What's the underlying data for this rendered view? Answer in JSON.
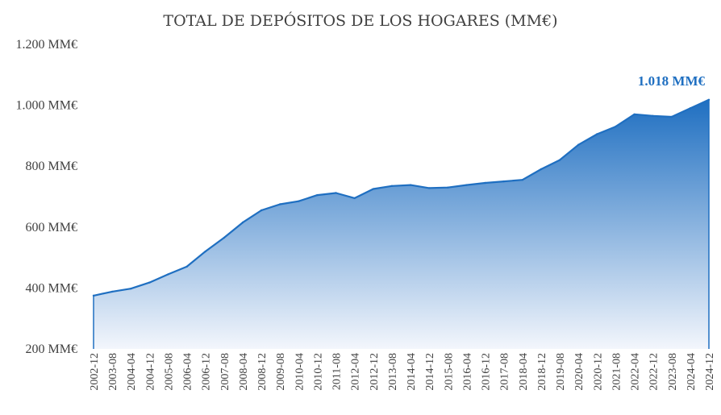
{
  "chart_data": {
    "type": "area",
    "title": "TOTAL DE DEPÓSITOS DE LOS HOGARES (MM€)",
    "ylim": [
      200,
      1200
    ],
    "y_ticks": [
      200,
      400,
      600,
      800,
      1000,
      1200
    ],
    "y_tick_labels": [
      "200 MM€",
      "400 MM€",
      "600 MM€",
      "800 MM€",
      "1.000 MM€",
      "1.200 MM€"
    ],
    "x_tick_labels": [
      "2002-12",
      "2003-08",
      "2004-04",
      "2004-12",
      "2005-08",
      "2006-04",
      "2006-12",
      "2007-08",
      "2008-04",
      "2008-12",
      "2009-08",
      "2010-04",
      "2010-12",
      "2011-08",
      "2012-04",
      "2012-12",
      "2013-08",
      "2014-04",
      "2014-12",
      "2015-08",
      "2016-04",
      "2016-12",
      "2017-08",
      "2018-04",
      "2018-12",
      "2019-08",
      "2020-04",
      "2020-12",
      "2021-08",
      "2022-04",
      "2022-12",
      "2023-08",
      "2024-04",
      "2024-12"
    ],
    "grid": false,
    "colors": {
      "line": "#1F6FC1",
      "fill_top": "#1F6FC1",
      "fill_bottom": "#F3F6FC",
      "end_label": "#1F6FC1",
      "text": "#404040"
    },
    "end_label": "1.018 MM€",
    "x": [
      "2002-12",
      "2003-08",
      "2004-04",
      "2004-12",
      "2005-08",
      "2006-04",
      "2006-12",
      "2007-08",
      "2008-04",
      "2008-12",
      "2009-08",
      "2010-04",
      "2010-12",
      "2011-08",
      "2012-04",
      "2012-12",
      "2013-08",
      "2014-04",
      "2014-12",
      "2015-08",
      "2016-04",
      "2016-12",
      "2017-08",
      "2018-04",
      "2018-12",
      "2019-08",
      "2020-04",
      "2020-12",
      "2021-08",
      "2022-04",
      "2022-12",
      "2023-08",
      "2024-04",
      "2024-12"
    ],
    "series": [
      {
        "values": [
          375,
          388,
          398,
          418,
          445,
          470,
          520,
          565,
          615,
          655,
          675,
          685,
          705,
          712,
          695,
          725,
          735,
          738,
          728,
          730,
          738,
          745,
          750,
          755,
          790,
          820,
          870,
          905,
          930,
          970,
          965,
          962,
          990,
          1018
        ]
      }
    ]
  }
}
